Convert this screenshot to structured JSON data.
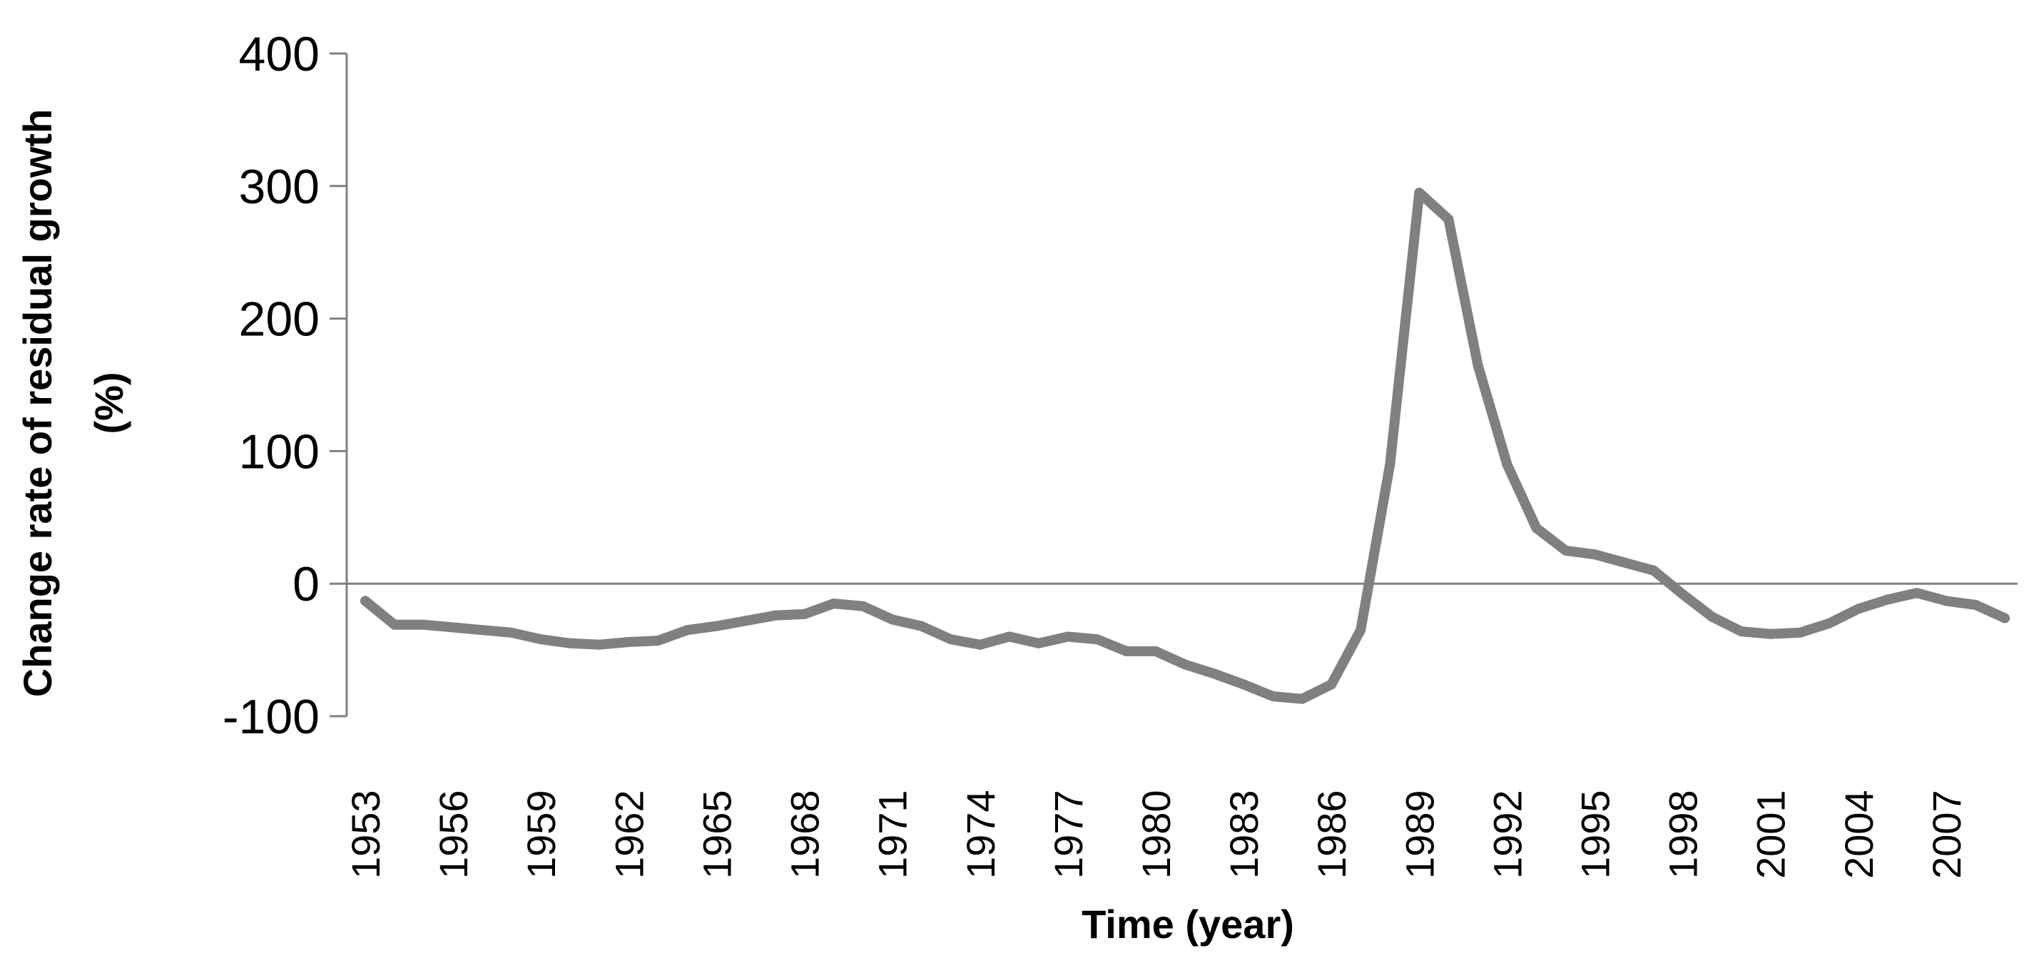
{
  "chart_data": {
    "type": "line",
    "xlabel": "Time (year)",
    "ylabel_lines": [
      "Change rate of residual growth",
      "(%)"
    ],
    "ylim": [
      -100,
      400
    ],
    "y_ticks": [
      400,
      300,
      200,
      100,
      0,
      -100
    ],
    "y_tick_labels": [
      "400",
      "300",
      "200",
      "100",
      "0",
      "-100"
    ],
    "x_tick_labels": [
      "1953",
      "1956",
      "1959",
      "1962",
      "1965",
      "1968",
      "1971",
      "1974",
      "1977",
      "1980",
      "1983",
      "1986",
      "1989",
      "1992",
      "1995",
      "1998",
      "2001",
      "2004",
      "2007"
    ],
    "line_color": "#808080",
    "zero_line_color": "#808080",
    "x": [
      1953,
      1954,
      1955,
      1956,
      1957,
      1958,
      1959,
      1960,
      1961,
      1962,
      1963,
      1964,
      1965,
      1966,
      1967,
      1968,
      1969,
      1970,
      1971,
      1972,
      1973,
      1974,
      1975,
      1976,
      1977,
      1978,
      1979,
      1980,
      1981,
      1982,
      1983,
      1984,
      1985,
      1986,
      1987,
      1988,
      1989,
      1990,
      1991,
      1992,
      1993,
      1994,
      1995,
      1996,
      1997,
      1998,
      1999,
      2000,
      2001,
      2002,
      2003,
      2004,
      2005,
      2006,
      2007,
      2008,
      2009
    ],
    "values": [
      -13,
      -31,
      -31,
      -33,
      -35,
      -37,
      -42,
      -45,
      -46,
      -44,
      -43,
      -35,
      -32,
      -28,
      -24,
      -23,
      -15,
      -17,
      -27,
      -32,
      -42,
      -46,
      -40,
      -45,
      -40,
      -42,
      -51,
      -51,
      -61,
      -68,
      -76,
      -85,
      -87,
      -76,
      -35,
      90,
      295,
      275,
      165,
      90,
      42,
      25,
      22,
      16,
      10,
      -8,
      -25,
      -36,
      -38,
      -37,
      -30,
      -19,
      -12,
      -7,
      -13,
      -16,
      -26
    ]
  }
}
